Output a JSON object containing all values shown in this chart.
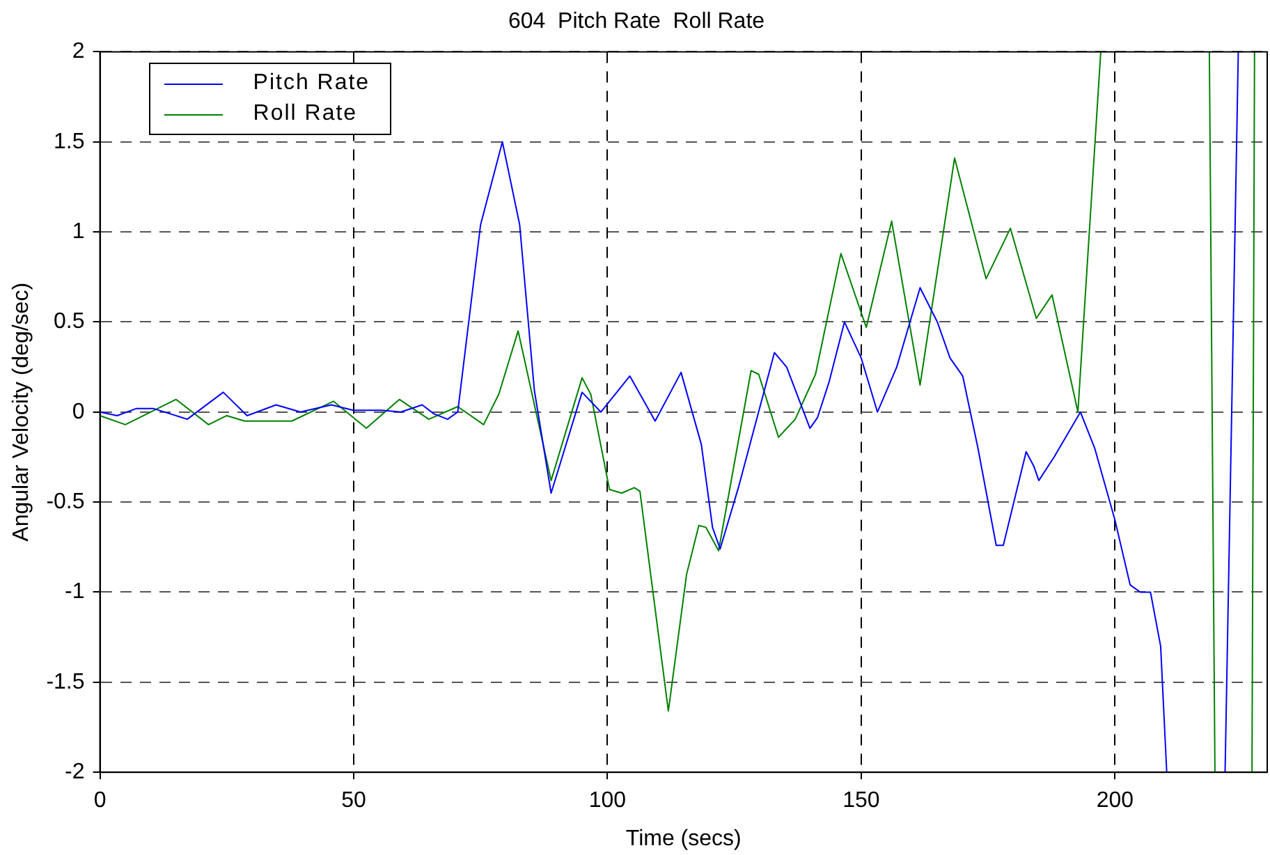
{
  "chart_data": {
    "type": "line",
    "title": "604  Pitch Rate  Roll Rate",
    "xlabel": "Time (secs)",
    "ylabel": "Angular Velocity (deg/sec)",
    "xlim": [
      0,
      230
    ],
    "xticks": [
      0,
      50,
      100,
      150,
      200
    ],
    "ylim": [
      -2,
      2
    ],
    "yticks": [
      -2,
      -1.5,
      -1,
      -0.5,
      0,
      0.5,
      1,
      1.5,
      2
    ],
    "grid": true,
    "legend": "top left",
    "line_style": "solid",
    "marker": "none",
    "series": [
      {
        "name": "Pitch Rate",
        "color": "#0000ff",
        "x": [
          0,
          3.4,
          7.2,
          10.5,
          17.2,
          24.3,
          29,
          34.7,
          39.5,
          45.6,
          49.9,
          55.5,
          59.3,
          63.5,
          65.8,
          68.5,
          70.5,
          75,
          79.3,
          82.7,
          85.6,
          88.9,
          95,
          98.7,
          104.4,
          109.4,
          114.5,
          118.5,
          120.7,
          122.2,
          125.9,
          132.9,
          135.3,
          139.9,
          141.4,
          143.7,
          146.7,
          150,
          153.2,
          157,
          161.6,
          165,
          167.5,
          170,
          173,
          176.6,
          178,
          182.5,
          184,
          185,
          188,
          193.2,
          196,
          200,
          203,
          205,
          207,
          209,
          210.2,
          215,
          221.7,
          224.3
        ],
        "values": [
          0,
          -0.02,
          0.02,
          0.02,
          -0.04,
          0.11,
          -0.02,
          0.04,
          0,
          0.04,
          0.01,
          0.01,
          0,
          0.04,
          -0.01,
          -0.04,
          0,
          1.04,
          1.5,
          1.04,
          0.12,
          -0.45,
          0.11,
          0,
          0.2,
          -0.05,
          0.22,
          -0.18,
          -0.64,
          -0.76,
          -0.41,
          0.33,
          0.25,
          -0.09,
          -0.03,
          0.17,
          0.5,
          0.3,
          0,
          0.25,
          0.69,
          0.5,
          0.3,
          0.2,
          -0.2,
          -0.74,
          -0.74,
          -0.22,
          -0.3,
          -0.38,
          -0.25,
          0,
          -0.2,
          -0.6,
          -0.96,
          -1,
          -1,
          -1.3,
          -2,
          null,
          -2,
          2
        ]
      },
      {
        "name": "Roll Rate",
        "color": "#008000",
        "x": [
          0,
          5,
          15,
          21.4,
          25,
          28.5,
          37.8,
          46,
          52.5,
          59,
          64.8,
          70.5,
          75.6,
          78.6,
          82.4,
          88.9,
          95,
          96.7,
          100.4,
          102.8,
          105.3,
          106.4,
          112,
          115.6,
          118,
          119.4,
          121.9,
          128.3,
          129.8,
          133.7,
          137,
          141,
          146,
          151,
          156,
          161.6,
          168.4,
          174.6,
          179.4,
          184.5,
          187.6,
          192.7,
          197.2,
          208,
          218.6,
          219.7,
          223,
          227,
          227.5
        ],
        "values": [
          -0.02,
          -0.07,
          0.07,
          -0.07,
          -0.02,
          -0.05,
          -0.05,
          0.06,
          -0.09,
          0.07,
          -0.04,
          0.03,
          -0.07,
          0.1,
          0.45,
          -0.38,
          0.19,
          0.1,
          -0.43,
          -0.45,
          -0.42,
          -0.44,
          -1.66,
          -0.9,
          -0.63,
          -0.64,
          -0.77,
          0.23,
          0.21,
          -0.14,
          -0.04,
          0.21,
          0.88,
          0.47,
          1.06,
          0.15,
          1.41,
          0.74,
          1.02,
          0.52,
          0.65,
          0,
          2,
          null,
          2,
          -2,
          null,
          -2,
          2
        ]
      }
    ]
  }
}
